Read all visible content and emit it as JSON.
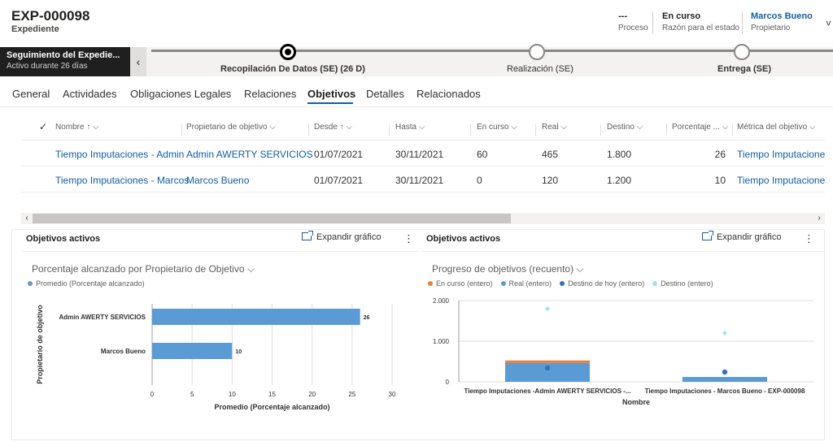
{
  "header": {
    "title": "EXP-000098",
    "entity": "Expediente",
    "fields": [
      {
        "value": "---",
        "label": "Proceso"
      },
      {
        "value": "En curso",
        "label": "Razón para el estado"
      },
      {
        "value": "Marcos Bueno",
        "label": "Propietario"
      }
    ]
  },
  "bpf": {
    "active_title": "Seguimiento del Expedie...",
    "active_sub": "Activo durante 26 días",
    "stages": [
      {
        "label": "Recopilación De Datos (SE)  (26 D)"
      },
      {
        "label": "Realización (SE)"
      },
      {
        "label": "Entrega (SE)"
      }
    ]
  },
  "tabs": [
    "General",
    "Actividades",
    "Obligaciones Legales",
    "Relaciones",
    "Objetivos",
    "Detalles",
    "Relacionados"
  ],
  "grid": {
    "columns": [
      "Nombre ↑",
      "Propietario de objetivo",
      "Desde ↑",
      "Hasta",
      "En curso",
      "Real",
      "Destino",
      "Porcentaje ...",
      "Métrica del objetivo"
    ],
    "rows": [
      [
        "Tiempo Imputaciones - Admin",
        "Admin AWERTY SERVICIOS",
        "01/07/2021",
        "30/11/2021",
        "60",
        "465",
        "1.800",
        "26",
        "Tiempo Imputacione"
      ],
      [
        "Tiempo Imputaciones - Marcos",
        "Marcos Bueno",
        "01/07/2021",
        "30/11/2021",
        "0",
        "120",
        "1.200",
        "10",
        "Tiempo Imputacione"
      ]
    ]
  },
  "panels": [
    {
      "title": "Objetivos activos",
      "expand_label": "Expandir gráfico"
    },
    {
      "title": "Objetivos activos",
      "expand_label": "Expandir gráfico"
    }
  ],
  "chart_data": [
    {
      "type": "bar",
      "orientation": "horizontal",
      "title": "Porcentaje alcanzado por Propietario de Objetivo",
      "legend": [
        "Promedio (Porcentaje alcanzado)"
      ],
      "categories": [
        "Admin AWERTY SERVICIOS",
        "Marcos Bueno"
      ],
      "values": [
        26,
        10
      ],
      "xlabel": "Promedio (Porcentaje alcanzado)",
      "ylabel": "Propietario de objetivo",
      "xlim": [
        0,
        30
      ],
      "xticks": [
        "0",
        "5",
        "10",
        "15",
        "20",
        "25",
        "30"
      ],
      "color": "#5b9bd5"
    },
    {
      "type": "bar",
      "title": "Progreso de objetivos (recuento)",
      "legend": [
        "En curso (entero)",
        "Real (entero)",
        "Destino de hoy (entero)",
        "Destino (entero)"
      ],
      "legend_colors": [
        "#ed7d31",
        "#5b9bd5",
        "#2e75b6",
        "#9be3f0"
      ],
      "categories": [
        "Tiempo Imputaciones -Admin AWERTY SERVICIOS -...",
        "Tiempo Imputaciones - Marcos Bueno - EXP-000098"
      ],
      "series": [
        {
          "name": "En curso (entero)",
          "values": [
            60,
            0
          ]
        },
        {
          "name": "Real (entero)",
          "values": [
            465,
            120
          ]
        },
        {
          "name": "Destino de hoy (entero)",
          "values": [
            340,
            240
          ]
        },
        {
          "name": "Destino (entero)",
          "values": [
            1800,
            1200
          ]
        }
      ],
      "xlabel": "Nombre",
      "ylim": [
        0,
        2000
      ],
      "yticks": [
        "0",
        "1.000",
        "2.000"
      ]
    }
  ]
}
